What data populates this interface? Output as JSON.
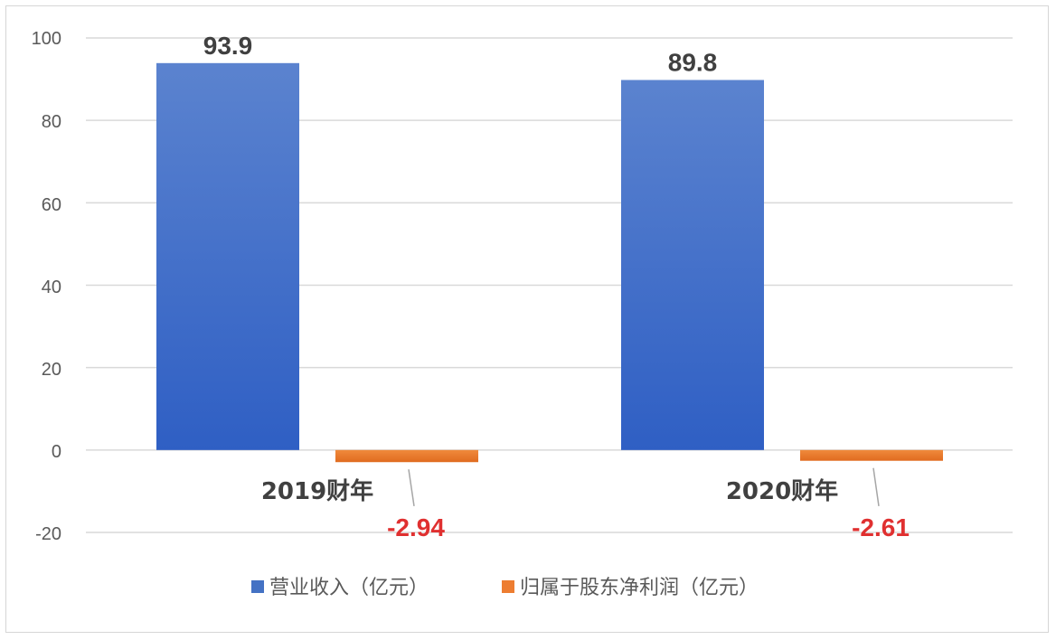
{
  "chart_data": {
    "type": "bar",
    "categories": [
      "2019财年",
      "2020财年"
    ],
    "series": [
      {
        "name": "营业收入（亿元）",
        "values": [
          93.9,
          89.8
        ],
        "labels": [
          "93.9",
          "89.8"
        ],
        "color": "#4472c4",
        "label_color": "#404040"
      },
      {
        "name": "归属于股东净利润（亿元）",
        "values": [
          -2.94,
          -2.61
        ],
        "labels": [
          "-2.94",
          "-2.61"
        ],
        "color": "#ed7d31",
        "label_color": "#e03030"
      }
    ],
    "ylim": [
      -20,
      100
    ],
    "yticks": [
      "100",
      "80",
      "60",
      "40",
      "20",
      "0",
      "-20"
    ],
    "grid": true,
    "legend_position": "bottom",
    "title": "",
    "xlabel": "",
    "ylabel": ""
  }
}
